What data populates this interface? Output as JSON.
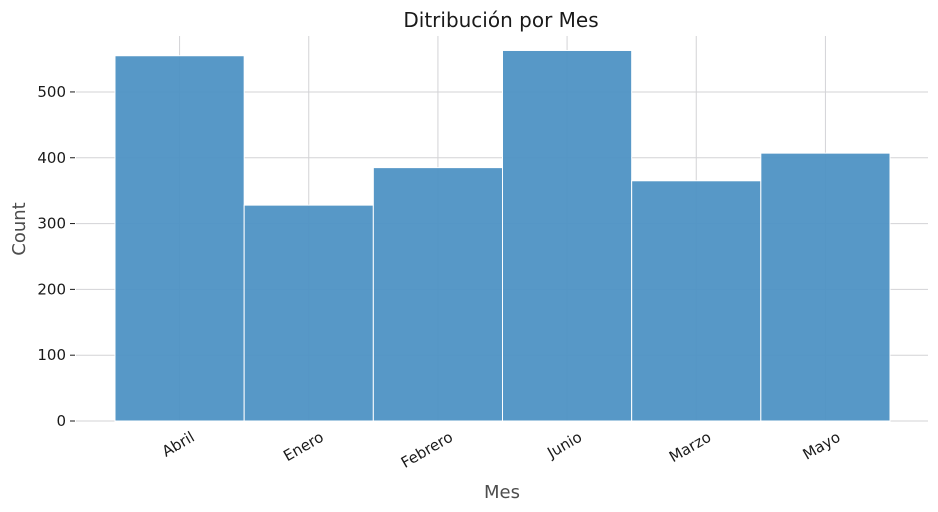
{
  "chart_data": {
    "type": "bar",
    "title": "Ditribución por Mes",
    "xlabel": "Mes",
    "ylabel": "Count",
    "categories": [
      "Abril",
      "Enero",
      "Febrero",
      "Junio",
      "Marzo",
      "Mayo"
    ],
    "values": [
      555,
      328,
      385,
      563,
      365,
      407
    ],
    "ylim": [
      0,
      585
    ],
    "yticks": [
      0,
      100,
      200,
      300,
      400,
      500
    ],
    "grid": true,
    "bar_color": "#4c92c3"
  }
}
